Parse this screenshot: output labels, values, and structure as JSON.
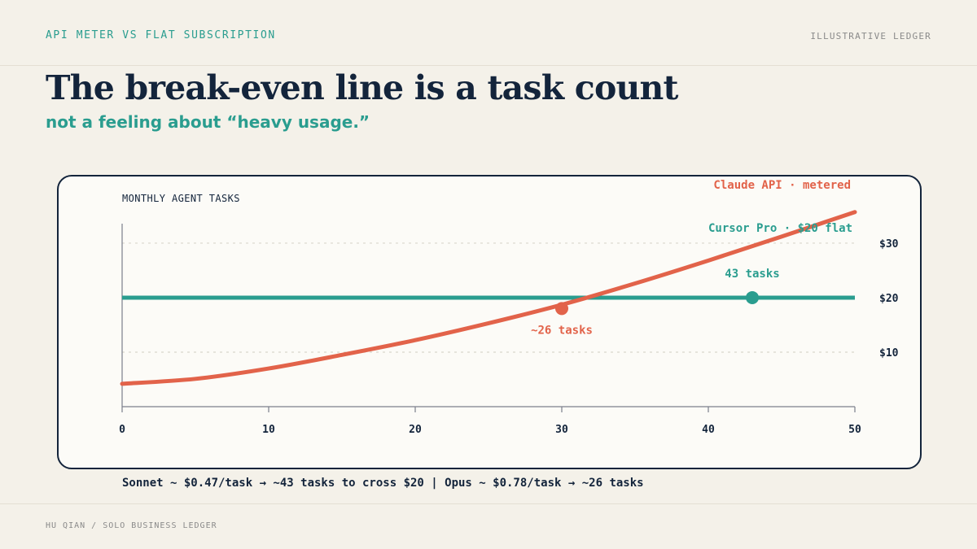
{
  "header": {
    "kicker": "API METER VS FLAT SUBSCRIPTION",
    "tag": "ILLUSTRATIVE LEDGER"
  },
  "headline": {
    "title": "The break-even line is a task count",
    "subtitle": "not a feeling about “heavy usage.”"
  },
  "chart_data": {
    "type": "line",
    "title": "MONTHLY AGENT TASKS",
    "x_ticks": [
      0,
      10,
      20,
      30,
      40,
      50
    ],
    "xlim": [
      0,
      50
    ],
    "y_ticks": [
      {
        "value": 10,
        "label": "$10"
      },
      {
        "value": 20,
        "label": "$20"
      },
      {
        "value": 30,
        "label": "$30"
      }
    ],
    "ylim": [
      0,
      37
    ],
    "grid": "dotted horizontal at $10 and $30",
    "series": [
      {
        "name": "Claude API · metered",
        "color": "#e2634a",
        "x": [
          0,
          5,
          10,
          15,
          20,
          25,
          30,
          35,
          40,
          45,
          50
        ],
        "y": [
          4.2,
          5.1,
          7.0,
          9.5,
          12.2,
          15.3,
          18.7,
          22.6,
          26.8,
          31.2,
          35.7
        ],
        "marker": {
          "x": 30,
          "y": 18,
          "label": "~26 tasks"
        }
      },
      {
        "name": "Cursor Pro · $20 flat",
        "color": "#2a9d8f",
        "x": [
          0,
          50
        ],
        "y": [
          20,
          20
        ],
        "marker": {
          "x": 43,
          "y": 20,
          "label": "43 tasks"
        }
      }
    ]
  },
  "caption": "Sonnet ~ $0.47/task → ~43 tasks to cross $20 | Opus ~ $0.78/task → ~26 tasks",
  "footer": "HU QIAN / SOLO BUSINESS LEDGER"
}
